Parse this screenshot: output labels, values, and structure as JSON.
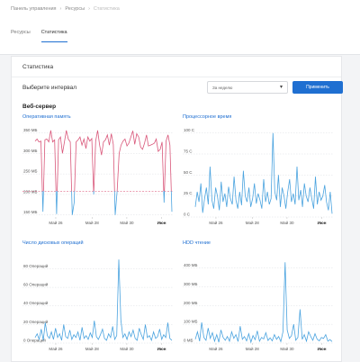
{
  "breadcrumbs": {
    "items": [
      "Панель управления",
      "Ресурсы",
      "Статистика"
    ],
    "separator": "›"
  },
  "tabs": [
    {
      "label": "Ресурсы",
      "active": false
    },
    {
      "label": "Статистика",
      "active": true
    }
  ],
  "card": {
    "title": "Статистика",
    "interval_label": "Выберите интервал",
    "interval_select": {
      "value": "За неделю",
      "caret": "▾"
    },
    "apply_label": "Применить",
    "section_title": "Веб-сервер"
  },
  "colors": {
    "accent": "#1f6fd1",
    "line_blue": "#4aa3df",
    "line_red": "#d9577a",
    "threshold": "#e06b8a"
  },
  "chart_data": [
    {
      "type": "line",
      "title": "Оперативная память",
      "x_ticks": [
        "Май 26",
        "Май 28",
        "Май 30",
        "Июн"
      ],
      "y_ticks": [
        "150 МБ",
        "200 МБ",
        "250 МБ",
        "300 МБ",
        "350 МБ"
      ],
      "ylim": [
        145,
        360
      ],
      "threshold": 208,
      "series": [
        {
          "values": [
            330,
            335,
            328,
            330,
            158,
            333,
            335,
            328,
            356,
            328,
            333,
            152,
            333,
            340,
            300,
            328,
            356,
            335,
            328,
            150,
            180,
            328,
            333,
            340,
            320,
            335,
            312,
            340,
            330,
            336,
            200,
            330,
            356,
            320,
            296,
            328,
            333,
            345,
            320,
            348,
            322,
            150,
            210,
            300,
            320,
            330,
            335,
            318,
            325,
            340,
            355,
            322,
            348,
            340,
            315,
            310,
            325,
            345,
            318,
            320,
            322,
            325,
            335,
            305,
            310,
            328,
            180,
            330,
            345,
            320,
            158
          ]
        }
      ]
    },
    {
      "type": "line",
      "title": "Процессорное время",
      "x_ticks": [
        "Май 26",
        "Май 28",
        "Май 30",
        "Июн"
      ],
      "y_ticks": [
        "0 С",
        "25 С",
        "50 С",
        "75 С",
        "100 С"
      ],
      "ylim": [
        0,
        105
      ],
      "series": [
        {
          "values": [
            12,
            30,
            18,
            40,
            5,
            22,
            35,
            15,
            60,
            20,
            10,
            35,
            25,
            8,
            42,
            18,
            28,
            12,
            36,
            22,
            15,
            48,
            20,
            10,
            30,
            14,
            55,
            25,
            18,
            35,
            12,
            22,
            40,
            16,
            28,
            20,
            10,
            45,
            18,
            30,
            15,
            22,
            100,
            30,
            20,
            50,
            12,
            35,
            25,
            10,
            30,
            45,
            18,
            28,
            15,
            60,
            20,
            32,
            12,
            40,
            25,
            18,
            35,
            22,
            10,
            48,
            15,
            30,
            20,
            25,
            38,
            18,
            8,
            30,
            4
          ]
        }
      ]
    },
    {
      "type": "line",
      "title": "Число дисковых операций",
      "x_ticks": [
        "Май 26",
        "Май 28",
        "Май 30",
        "Июн"
      ],
      "y_ticks": [
        "0 Операций",
        "20 Операций",
        "40 Операций",
        "60 Операций",
        "80 Операций"
      ],
      "ylim": [
        0,
        95
      ],
      "series": [
        {
          "values": [
            6,
            10,
            4,
            15,
            3,
            22,
            8,
            5,
            12,
            4,
            16,
            6,
            10,
            3,
            20,
            7,
            5,
            14,
            4,
            9,
            6,
            12,
            3,
            17,
            5,
            8,
            4,
            11,
            6,
            24,
            7,
            4,
            9,
            15,
            5,
            3,
            10,
            6,
            18,
            4,
            8,
            90,
            25,
            6,
            10,
            4,
            12,
            7,
            14,
            5,
            3,
            16,
            9,
            4,
            20,
            6,
            8,
            3,
            12,
            5,
            7,
            15,
            4,
            9,
            6,
            22,
            5,
            3
          ]
        }
      ]
    },
    {
      "type": "line",
      "title": "HDD чтение",
      "x_ticks": [
        "Май 26",
        "Май 28",
        "Май 30",
        "Июн"
      ],
      "y_ticks": [
        "0 МБ",
        "100 МБ",
        "200 МБ",
        "300 МБ",
        "400 МБ"
      ],
      "ylim": [
        0,
        470
      ],
      "series": [
        {
          "values": [
            20,
            60,
            10,
            110,
            30,
            15,
            80,
            25,
            55,
            10,
            45,
            5,
            70,
            30,
            15,
            35,
            10,
            60,
            25,
            45,
            8,
            90,
            20,
            35,
            12,
            50,
            5,
            40,
            18,
            65,
            10,
            30,
            22,
            55,
            14,
            28,
            12,
            45,
            20,
            35,
            8,
            60,
            430,
            70,
            25,
            40,
            100,
            15,
            30,
            180,
            20,
            45,
            10,
            60,
            35,
            15,
            50,
            20,
            12,
            30,
            25,
            45,
            10,
            18,
            8
          ]
        }
      ]
    }
  ]
}
